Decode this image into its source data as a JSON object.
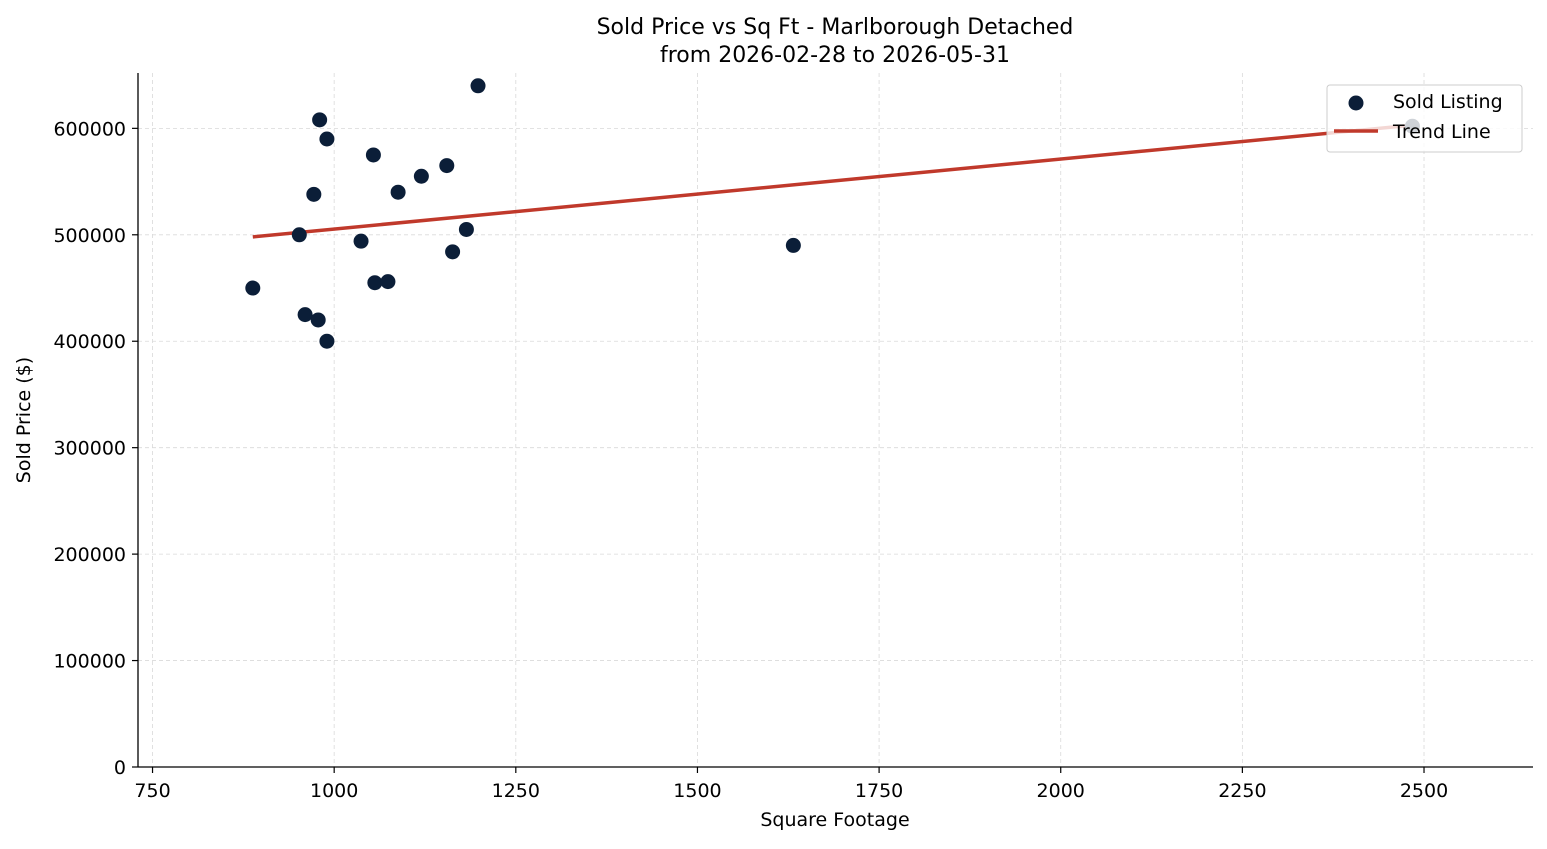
{
  "chart_data": {
    "type": "scatter",
    "title": "Sold Price vs Sq Ft - Marlborough Detached",
    "subtitle": "from 2026-02-28 to 2026-05-31",
    "xlabel": "Square Footage",
    "ylabel": "Sold Price ($)",
    "xlim": [
      730,
      2650
    ],
    "ylim": [
      0,
      652000
    ],
    "x_ticks": [
      750,
      1000,
      1250,
      1500,
      1750,
      2000,
      2250,
      2500
    ],
    "y_ticks": [
      0,
      100000,
      200000,
      300000,
      400000,
      500000,
      600000
    ],
    "grid": true,
    "legend_position": "top-right",
    "colors": {
      "points": "#0b1e38",
      "trend": "#c0392b",
      "grid": "#d9d9d9",
      "axis": "#000000"
    },
    "series": [
      {
        "name": "Sold Listing",
        "kind": "scatter",
        "points": [
          {
            "x": 888,
            "y": 450000
          },
          {
            "x": 952,
            "y": 500000
          },
          {
            "x": 960,
            "y": 425000
          },
          {
            "x": 972,
            "y": 538000
          },
          {
            "x": 978,
            "y": 420000
          },
          {
            "x": 980,
            "y": 608000
          },
          {
            "x": 990,
            "y": 590000
          },
          {
            "x": 990,
            "y": 400000
          },
          {
            "x": 1037,
            "y": 494000
          },
          {
            "x": 1054,
            "y": 575000
          },
          {
            "x": 1056,
            "y": 455000
          },
          {
            "x": 1074,
            "y": 456000
          },
          {
            "x": 1088,
            "y": 540000
          },
          {
            "x": 1120,
            "y": 555000
          },
          {
            "x": 1155,
            "y": 565000
          },
          {
            "x": 1163,
            "y": 484000
          },
          {
            "x": 1182,
            "y": 505000
          },
          {
            "x": 1198,
            "y": 640000
          },
          {
            "x": 1632,
            "y": 490000
          },
          {
            "x": 2484,
            "y": 602000
          }
        ]
      },
      {
        "name": "Trend Line",
        "kind": "line",
        "points": [
          {
            "x": 888,
            "y": 498000
          },
          {
            "x": 2484,
            "y": 603000
          }
        ]
      }
    ]
  }
}
